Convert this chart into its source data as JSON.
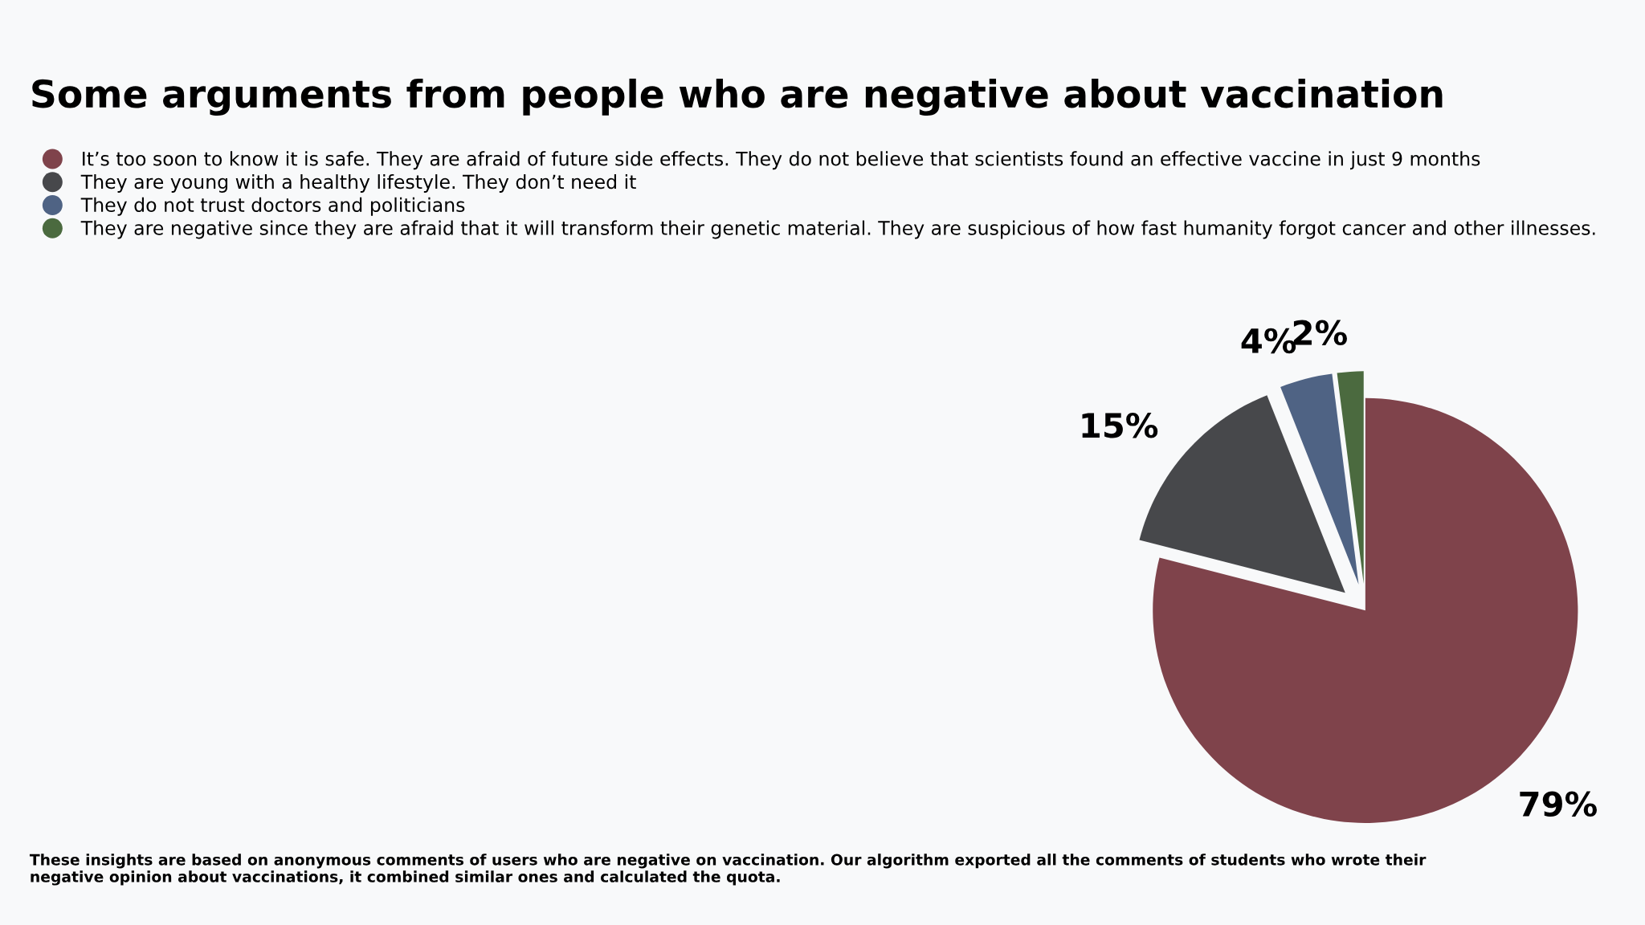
{
  "chart_data": {
    "type": "pie",
    "title": "Some arguments from people who are negative about vaccination",
    "categories": [
      "It’s too soon to know it is safe. They are afraid of future side effects. They do not believe that scientists found an effective vaccine in just 9 months",
      "They are young with a healthy lifestyle. They don’t need it",
      "They do not trust doctors and politicians",
      "They are negative since they are afraid that it will transform their genetic material. They are suspicious of how fast humanity forgot cancer and other illnesses."
    ],
    "values": [
      79,
      15,
      4,
      2
    ],
    "value_labels": [
      "79%",
      "15%",
      "4%",
      "2%"
    ],
    "colors": [
      "#7f434b",
      "#47484b",
      "#4f6384",
      "#4b6a3f"
    ],
    "legend": "top left",
    "annotations": [
      "These insights are based on anonymous comments of users who are negative on vaccination. Our algorithm exported all the comments of students who wrote their negative opinion about vaccinations, it combined similar ones and calculated the quota."
    ]
  }
}
